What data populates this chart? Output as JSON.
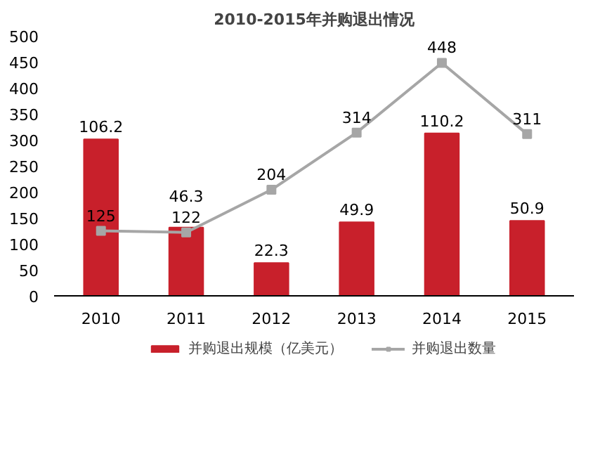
{
  "chart_data": {
    "type": "bar",
    "title": "2010-2015年并购退出情况",
    "categories": [
      "2010",
      "2011",
      "2012",
      "2013",
      "2014",
      "2015"
    ],
    "series": [
      {
        "name": "并购退出规模（亿美元）",
        "color": "#c8202b",
        "axis": "y2",
        "values": [
          106.2,
          46.3,
          22.3,
          49.9,
          110.2,
          50.9
        ]
      },
      {
        "name": "并购退出数量",
        "type": "line",
        "color": "#a6a6a6",
        "values": [
          125,
          122,
          204,
          314,
          448,
          311
        ]
      }
    ],
    "ylim": [
      0,
      500
    ],
    "yticks": [
      0,
      50,
      100,
      150,
      200,
      250,
      300,
      350,
      400,
      450,
      500
    ],
    "data_labels": true,
    "legend": "bottom",
    "grid": false,
    "marker": "square",
    "line_style": "solid"
  }
}
